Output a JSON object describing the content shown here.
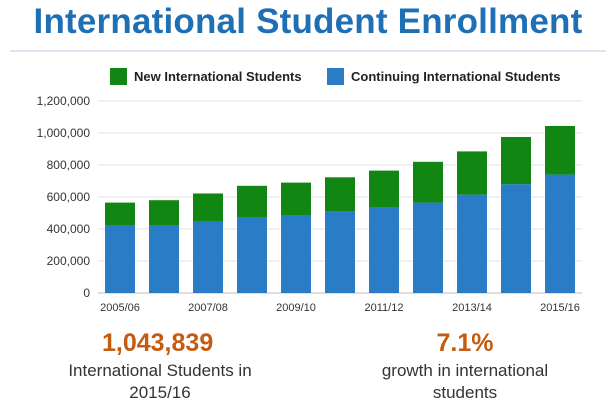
{
  "title": "International Student Enrollment",
  "colors": {
    "title": "#1f6fb5",
    "new": "#128612",
    "continuing": "#2a7cc6",
    "stat": "#c55a11"
  },
  "chart_data": {
    "type": "bar",
    "stacked": true,
    "categories": [
      "2005/06",
      "2006/07",
      "2007/08",
      "2008/09",
      "2009/10",
      "2010/11",
      "2011/12",
      "2012/13",
      "2013/14",
      "2014/15",
      "2015/16"
    ],
    "x_tick_labels": [
      "2005/06",
      "",
      "2007/08",
      "",
      "2009/10",
      "",
      "2011/12",
      "",
      "2013/14",
      "",
      "2015/16"
    ],
    "series": [
      {
        "name": "Continuing International Students",
        "color": "#2a7cc6",
        "values": [
          420000,
          425000,
          450000,
          470000,
          485000,
          510000,
          535000,
          565000,
          615000,
          680000,
          740000
        ]
      },
      {
        "name": "New International Students",
        "color": "#128612",
        "values": [
          145000,
          155000,
          172000,
          200000,
          205000,
          213000,
          230000,
          255000,
          270000,
          295000,
          303839
        ]
      }
    ],
    "legend": [
      "New International Students",
      "Continuing International Students"
    ],
    "legend_position": "top",
    "ylim": [
      0,
      1200000
    ],
    "y_ticks": [
      0,
      200000,
      400000,
      600000,
      800000,
      1000000,
      1200000
    ],
    "y_tick_labels": [
      "0",
      "200,000",
      "400,000",
      "600,000",
      "800,000",
      "1,000,000",
      "1,200,000"
    ],
    "grid": true
  },
  "stats": {
    "left": {
      "value": "1,043,839",
      "label": "International Students in 2015/16"
    },
    "right": {
      "value": "7.1%",
      "label": "growth in international students"
    }
  }
}
